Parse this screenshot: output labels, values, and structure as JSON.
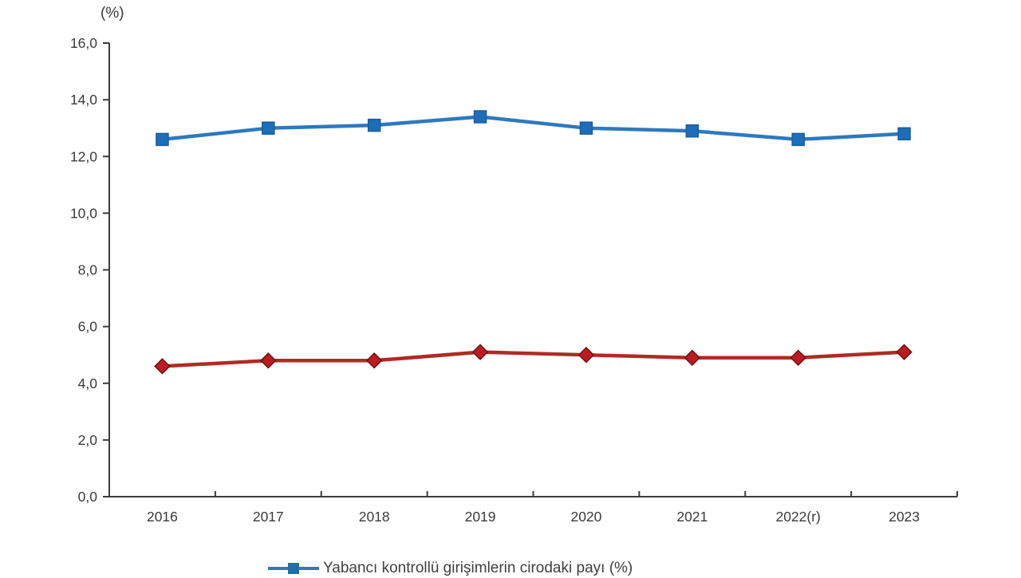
{
  "chart_data": {
    "type": "line",
    "title": "",
    "unit_label": "(%)",
    "categories": [
      "2016",
      "2017",
      "2018",
      "2019",
      "2020",
      "2021",
      "2022(r)",
      "2023"
    ],
    "series": [
      {
        "name": "Yabancı kontrollü girişimlerin cirodaki payı (%)",
        "values": [
          12.6,
          13.0,
          13.1,
          13.4,
          13.0,
          12.9,
          12.6,
          12.8
        ],
        "line_color": "#2e79be",
        "marker": "square",
        "marker_fill": "#1e6db8",
        "marker_stroke": "#175e9e"
      },
      {
        "name": "",
        "values": [
          4.6,
          4.8,
          4.8,
          5.1,
          5.0,
          4.9,
          4.9,
          5.1
        ],
        "line_color": "#af2b25",
        "marker": "diamond",
        "marker_fill": "#bd1b21",
        "marker_stroke": "#6b1312"
      }
    ],
    "ylim": [
      0,
      16
    ],
    "ytick_step": 2,
    "ytick_labels_bottom_to_top": [
      "0,0",
      "2,0",
      "4,0",
      "6,0",
      "8,0",
      "10,0",
      "12,0",
      "14,0",
      "16,0"
    ],
    "grid": false,
    "axis_color": "#3c3c3c",
    "text_color": "#3a3a3a",
    "legend": {
      "position": "bottom-center",
      "entries": [
        {
          "label": "Yabancı kontrollü girişimlerin cirodaki payı (%)",
          "marker": "square",
          "color": "#2e79be",
          "marker_fill": "#1e6db8"
        }
      ]
    }
  }
}
